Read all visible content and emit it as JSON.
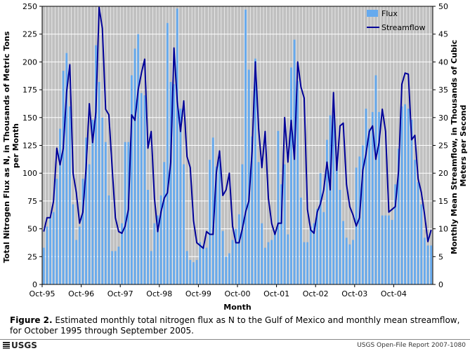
{
  "colors": {
    "plot_bg": "#c0c0c0",
    "grid": "#ffffff",
    "bar": "#66aaee",
    "line": "#000099"
  },
  "caption": {
    "label": "Figure 2.",
    "text": " Estimated monthly total nitrogen flux as N to the Gulf of Mexico and monthly mean streamflow, for October 1995 through September 2005."
  },
  "footer": {
    "logo_text": "USGS",
    "logo_icon": "usgs-wave-icon",
    "report": "USGS Open-File Report 2007-1080"
  },
  "chart_data": {
    "type": "bar",
    "title": "",
    "xlabel": "Month",
    "ylabel": "Total Nitrogen Flux as N, in Thousands of Metric Tons per Month",
    "ylabel_lines": [
      "Total Nitrogen Flux as N, in Thousands of Metric Tons",
      "per Month"
    ],
    "y2label": "Monthly Mean Streamflow, in Thousands of Cubic Meters per Second",
    "y2label_lines": [
      "Monthly Mean Streamflow, in Thousands of Cubic",
      "Meters per Second"
    ],
    "ylim": [
      0,
      250
    ],
    "y2lim": [
      0,
      50
    ],
    "yticks": [
      0,
      25,
      50,
      75,
      100,
      125,
      150,
      175,
      200,
      225,
      250
    ],
    "y2ticks": [
      0,
      5,
      10,
      15,
      20,
      25,
      30,
      35,
      40,
      45,
      50
    ],
    "x_tick_labels": [
      "Oct-95",
      "Oct-96",
      "Oct-97",
      "Oct-98",
      "Oct-99",
      "Oct-00",
      "Oct-01",
      "Oct-02",
      "Oct-03",
      "Oct-04"
    ],
    "x_tick_every": 12,
    "grid": true,
    "legend_position": "top-right",
    "series": [
      {
        "name": "Flux",
        "type": "bar",
        "axis": "left",
        "values": [
          33,
          52,
          60,
          65,
          95,
          140,
          192,
          208,
          160,
          72,
          40,
          52,
          95,
          132,
          108,
          148,
          215,
          182,
          150,
          128,
          80,
          30,
          30,
          34,
          55,
          128,
          128,
          188,
          212,
          225,
          172,
          170,
          85,
          30,
          55,
          62,
          80,
          110,
          235,
          182,
          180,
          248,
          158,
          108,
          30,
          22,
          20,
          22,
          38,
          35,
          33,
          112,
          132,
          106,
          112,
          48,
          25,
          28,
          40,
          50,
          63,
          108,
          247,
          193,
          133,
          203,
          110,
          55,
          33,
          38,
          40,
          45,
          138,
          90,
          108,
          45,
          195,
          220,
          183,
          78,
          38,
          38,
          52,
          55,
          68,
          100,
          65,
          130,
          152,
          153,
          112,
          85,
          57,
          42,
          36,
          40,
          105,
          115,
          125,
          158,
          140,
          155,
          188,
          155,
          62,
          62,
          62,
          58,
          90,
          122,
          160,
          162,
          158,
          148,
          112,
          92,
          72,
          42,
          35,
          35
        ]
      },
      {
        "name": "Streamflow",
        "type": "line",
        "axis": "right",
        "values": [
          9.5,
          12,
          12,
          15,
          24.5,
          21.5,
          24.5,
          34.5,
          39.5,
          20,
          16.5,
          11,
          13,
          21,
          32.5,
          25.5,
          31,
          49.8,
          46,
          31.5,
          30.5,
          21,
          12,
          9.5,
          9.2,
          10.5,
          13.5,
          30.5,
          29.5,
          35,
          38,
          40.5,
          24.5,
          27.5,
          15.5,
          9.5,
          13,
          15.5,
          16.5,
          22,
          42.5,
          33,
          27.5,
          33,
          23,
          21,
          11.5,
          7.5,
          7,
          6.5,
          9.5,
          9,
          9,
          20,
          24,
          16,
          17,
          20,
          10.5,
          7.5,
          7.5,
          10,
          13,
          15,
          24,
          40,
          28,
          21,
          27.5,
          15.5,
          11,
          9,
          11,
          11,
          30,
          22,
          29.5,
          22.5,
          40,
          35.5,
          33.5,
          13.5,
          9.8,
          9.2,
          13,
          14.5,
          17,
          22,
          17,
          34.5,
          20.5,
          28.5,
          29,
          18,
          14,
          12.5,
          10.5,
          12,
          20.5,
          23.5,
          27.5,
          28.5,
          22.5,
          25.5,
          31.5,
          27.5,
          13,
          13.5,
          14,
          20.5,
          36,
          38,
          37.8,
          26,
          26.8,
          19,
          16.5,
          12.5,
          7.7,
          9.8
        ]
      }
    ]
  }
}
